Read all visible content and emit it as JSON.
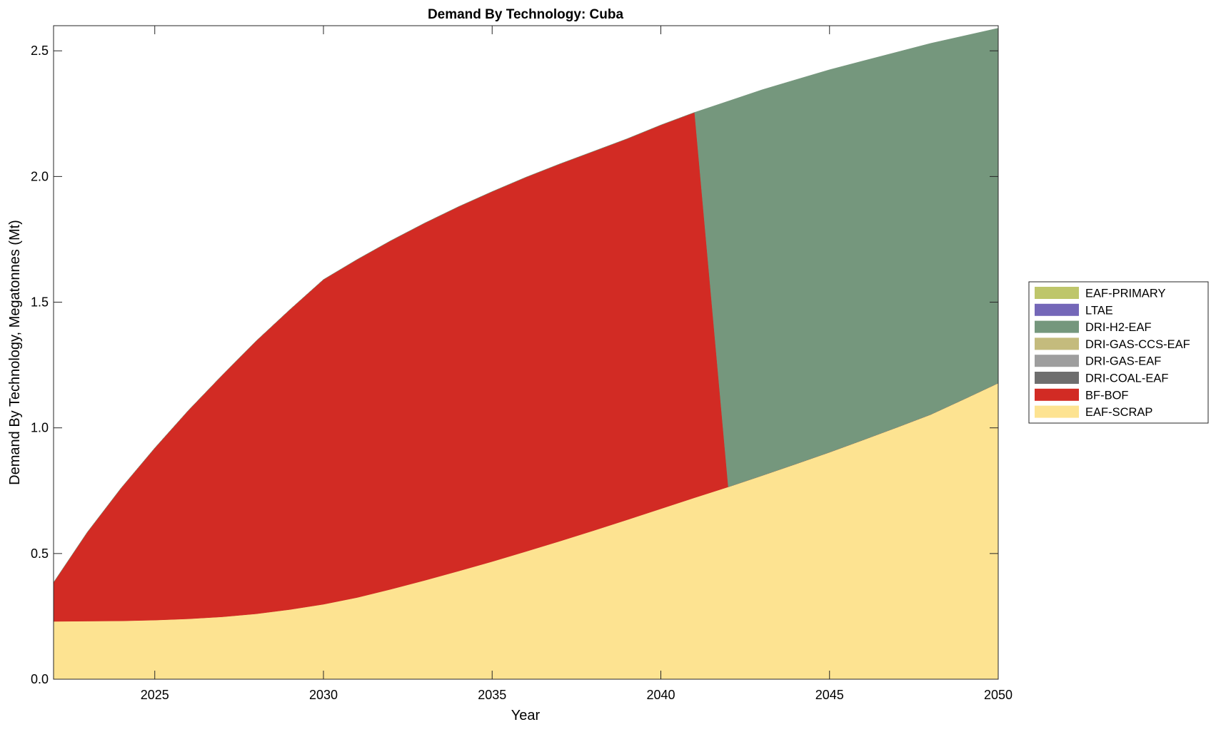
{
  "chart_data": {
    "type": "area",
    "stacked": true,
    "title": "Demand By Technology: Cuba",
    "xlabel": "Year",
    "ylabel": "Demand By Technology, Megatonnes (Mt)",
    "xlim": [
      2022,
      2050
    ],
    "ylim": [
      0,
      2.6
    ],
    "xticks": [
      2025,
      2030,
      2035,
      2040,
      2045,
      2050
    ],
    "xtick_labels": [
      "2025",
      "2030",
      "2035",
      "2040",
      "2045",
      "2050"
    ],
    "yticks": [
      0,
      0.5,
      1.0,
      1.5,
      2.0,
      2.5
    ],
    "ytick_labels": [
      "0.0",
      "0.5",
      "1.0",
      "1.5",
      "2.0",
      "2.5"
    ],
    "grid": false,
    "legend_position": "right",
    "x": [
      2022,
      2023,
      2024,
      2025,
      2026,
      2027,
      2028,
      2029,
      2030,
      2031,
      2032,
      2033,
      2034,
      2035,
      2036,
      2037,
      2038,
      2039,
      2040,
      2041,
      2042,
      2043,
      2044,
      2045,
      2046,
      2047,
      2048,
      2049,
      2050
    ],
    "series": [
      {
        "name": "EAF-SCRAP",
        "color": "#fde391",
        "values": [
          0.23,
          0.231,
          0.232,
          0.235,
          0.24,
          0.248,
          0.26,
          0.277,
          0.298,
          0.325,
          0.358,
          0.393,
          0.43,
          0.468,
          0.508,
          0.549,
          0.591,
          0.634,
          0.678,
          0.722,
          0.765,
          0.81,
          0.856,
          0.903,
          0.952,
          1.002,
          1.053,
          1.115,
          1.178
        ]
      },
      {
        "name": "BF-BOF",
        "color": "#d22b24",
        "values": [
          0.155,
          0.354,
          0.528,
          0.685,
          0.83,
          0.962,
          1.085,
          1.193,
          1.292,
          1.345,
          1.387,
          1.422,
          1.45,
          1.472,
          1.489,
          1.501,
          1.509,
          1.516,
          1.527,
          1.533,
          0,
          0,
          0,
          0,
          0,
          0,
          0,
          0,
          0
        ]
      },
      {
        "name": "DRI-COAL-EAF",
        "color": "#6e6e6e",
        "values": [
          0,
          0,
          0,
          0,
          0,
          0,
          0,
          0,
          0,
          0,
          0,
          0,
          0,
          0,
          0,
          0,
          0,
          0,
          0,
          0,
          0,
          0,
          0,
          0,
          0,
          0,
          0,
          0,
          0
        ]
      },
      {
        "name": "DRI-GAS-EAF",
        "color": "#9e9e9e",
        "values": [
          0,
          0,
          0,
          0,
          0,
          0,
          0,
          0,
          0,
          0,
          0,
          0,
          0,
          0,
          0,
          0,
          0,
          0,
          0,
          0,
          0,
          0,
          0,
          0,
          0,
          0,
          0,
          0,
          0
        ]
      },
      {
        "name": "DRI-GAS-CCS-EAF",
        "color": "#c4bb7d",
        "values": [
          0,
          0,
          0,
          0,
          0,
          0,
          0,
          0,
          0,
          0,
          0,
          0,
          0,
          0,
          0,
          0,
          0,
          0,
          0,
          0,
          0,
          0,
          0,
          0,
          0,
          0,
          0,
          0,
          0
        ]
      },
      {
        "name": "DRI-H2-EAF",
        "color": "#75977d",
        "values": [
          0,
          0,
          0,
          0,
          0,
          0,
          0,
          0,
          0,
          0,
          0,
          0,
          0,
          0,
          0,
          0,
          0,
          0,
          0,
          0,
          1.535,
          1.535,
          1.529,
          1.522,
          1.508,
          1.493,
          1.477,
          1.445,
          1.412
        ]
      },
      {
        "name": "LTAE",
        "color": "#7467b8",
        "values": [
          0,
          0,
          0,
          0,
          0,
          0,
          0,
          0,
          0,
          0,
          0,
          0,
          0,
          0,
          0,
          0,
          0,
          0,
          0,
          0,
          0,
          0,
          0,
          0,
          0,
          0,
          0,
          0,
          0
        ]
      },
      {
        "name": "EAF-PRIMARY",
        "color": "#bec66b",
        "values": [
          0,
          0,
          0,
          0,
          0,
          0,
          0,
          0,
          0,
          0,
          0,
          0,
          0,
          0,
          0,
          0,
          0,
          0,
          0,
          0,
          0,
          0,
          0,
          0,
          0,
          0,
          0,
          0,
          0
        ]
      }
    ],
    "legend_order": [
      "EAF-PRIMARY",
      "LTAE",
      "DRI-H2-EAF",
      "DRI-GAS-CCS-EAF",
      "DRI-GAS-EAF",
      "DRI-COAL-EAF",
      "BF-BOF",
      "EAF-SCRAP"
    ]
  }
}
